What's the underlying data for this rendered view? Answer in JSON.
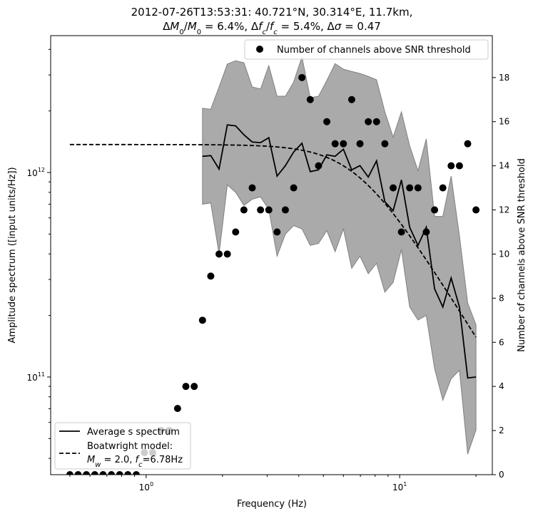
{
  "chart_data": {
    "type": "line",
    "title_line1": "2012-07-26T13:53:31: 40.721°N, 30.314°E, 11.7km,",
    "title_line2": [
      {
        "t": "Δ"
      },
      {
        "t": "M",
        "i": true
      },
      {
        "t": "0",
        "sub": true
      },
      {
        "t": "/"
      },
      {
        "t": "M",
        "i": true
      },
      {
        "t": "0",
        "sub": true
      },
      {
        "t": " = 6.4%, Δ"
      },
      {
        "t": "f",
        "i": true
      },
      {
        "t": "c",
        "sub": true,
        "i": true
      },
      {
        "t": "/"
      },
      {
        "t": "f",
        "i": true
      },
      {
        "t": "c",
        "sub": true,
        "i": true
      },
      {
        "t": " = 5.4%, Δ"
      },
      {
        "t": "σ",
        "i": true
      },
      {
        "t": " = 0.47"
      }
    ],
    "xlabel": "Frequency (Hz)",
    "ylabel_left": "Amplitude spectrum ([input units/Hz])",
    "ylabel_right": "Number of channels above SNR threshold",
    "xscale": "log",
    "yscale_left": "log",
    "xlim": [
      0.42,
      23.2
    ],
    "ylim_left": [
      33300000000.0,
      4670000000000.0
    ],
    "ylim_right": [
      0,
      19.9
    ],
    "x_ticks": [
      {
        "v": 1,
        "base": "10",
        "exp": "0"
      },
      {
        "v": 10,
        "base": "10",
        "exp": "1"
      }
    ],
    "y_left_ticks": [
      {
        "v": 100000000000.0,
        "base": "10",
        "exp": "11"
      },
      {
        "v": 1000000000000.0,
        "base": "10",
        "exp": "12"
      }
    ],
    "y_right_ticks": [
      "0",
      "2",
      "4",
      "6",
      "8",
      "10",
      "12",
      "14",
      "16",
      "18"
    ],
    "frequency": [
      0.5,
      0.539,
      0.581,
      0.627,
      0.676,
      0.729,
      0.786,
      0.847,
      0.914,
      0.984,
      1.061,
      1.144,
      1.234,
      1.33,
      1.434,
      1.547,
      1.668,
      1.798,
      1.939,
      2.09,
      2.254,
      2.43,
      2.62,
      2.825,
      3.046,
      3.284,
      3.541,
      3.818,
      4.116,
      4.438,
      4.785,
      5.16,
      5.563,
      5.998,
      6.467,
      6.973,
      7.518,
      8.106,
      8.74,
      9.424,
      10.16,
      10.95,
      11.81,
      12.73,
      13.73,
      14.8,
      15.96,
      17.21,
      18.55,
      20.0
    ],
    "series": [
      {
        "name": "Average s spectrum",
        "kind": "line",
        "color": "#000000",
        "values": [
          null,
          null,
          null,
          null,
          null,
          null,
          null,
          null,
          null,
          null,
          null,
          null,
          null,
          null,
          null,
          null,
          1200000000000.0,
          1210000000000.0,
          1040000000000.0,
          1710000000000.0,
          1690000000000.0,
          1530000000000.0,
          1410000000000.0,
          1400000000000.0,
          1480000000000.0,
          960000000000.0,
          1080000000000.0,
          1260000000000.0,
          1390000000000.0,
          1010000000000.0,
          1030000000000.0,
          1220000000000.0,
          1200000000000.0,
          1300000000000.0,
          1030000000000.0,
          1080000000000.0,
          950000000000.0,
          1140000000000.0,
          720000000000.0,
          650000000000.0,
          920000000000.0,
          540000000000.0,
          440000000000.0,
          540000000000.0,
          270000000000.0,
          220000000000.0,
          305000000000.0,
          220000000000.0,
          99000000000.0,
          100000000000.0
        ]
      },
      {
        "kind": "band",
        "color": "#aaaaaa",
        "upper": [
          null,
          null,
          null,
          null,
          null,
          null,
          null,
          null,
          null,
          null,
          null,
          null,
          null,
          null,
          null,
          null,
          2060000000000.0,
          2040000000000.0,
          2620000000000.0,
          3390000000000.0,
          3520000000000.0,
          3440000000000.0,
          2620000000000.0,
          2560000000000.0,
          3330000000000.0,
          2360000000000.0,
          2360000000000.0,
          2770000000000.0,
          3670000000000.0,
          2320000000000.0,
          2360000000000.0,
          2820000000000.0,
          3410000000000.0,
          3200000000000.0,
          3120000000000.0,
          3050000000000.0,
          2950000000000.0,
          2840000000000.0,
          1980000000000.0,
          1490000000000.0,
          1980000000000.0,
          1350000000000.0,
          1020000000000.0,
          1460000000000.0,
          610000000000.0,
          610000000000.0,
          960000000000.0,
          490000000000.0,
          230000000000.0,
          180000000000.0
        ],
        "lower": [
          null,
          null,
          null,
          null,
          null,
          null,
          null,
          null,
          null,
          null,
          null,
          null,
          null,
          null,
          null,
          null,
          700000000000.0,
          710000000000.0,
          400000000000.0,
          870000000000.0,
          800000000000.0,
          690000000000.0,
          740000000000.0,
          760000000000.0,
          660000000000.0,
          390000000000.0,
          500000000000.0,
          550000000000.0,
          530000000000.0,
          440000000000.0,
          450000000000.0,
          520000000000.0,
          410000000000.0,
          530000000000.0,
          340000000000.0,
          390000000000.0,
          320000000000.0,
          360000000000.0,
          260000000000.0,
          290000000000.0,
          420000000000.0,
          220000000000.0,
          190000000000.0,
          200000000000.0,
          110000000000.0,
          77000000000.0,
          98000000000.0,
          108000000000.0,
          42000000000.0,
          55000000000.0
        ]
      },
      {
        "name": "Boatwright model:",
        "name_line2": [
          {
            "t": "M",
            "i": true
          },
          {
            "t": "w",
            "sub": true,
            "i": true
          },
          {
            "t": " = 2.0, "
          },
          {
            "t": "f",
            "i": true
          },
          {
            "t": "c",
            "sub": true,
            "i": true
          },
          {
            "t": "=6.78Hz"
          }
        ],
        "kind": "dashed-line",
        "color": "#000000",
        "plateau": 1370000000000.0,
        "Mw": 2.0,
        "fc": 6.78
      },
      {
        "name": "Number of channels above SNR threshold",
        "kind": "scatter",
        "axis": "right",
        "color": "#000000",
        "values": [
          0,
          0,
          0,
          0,
          0,
          0,
          0,
          0,
          0,
          1,
          1,
          2,
          2,
          3,
          4,
          4,
          7,
          9,
          10,
          10,
          11,
          12,
          13,
          12,
          12,
          11,
          12,
          13,
          18,
          17,
          14,
          16,
          15,
          15,
          17,
          15,
          16,
          16,
          15,
          13,
          11,
          13,
          13,
          11,
          12,
          13,
          14,
          14,
          15,
          12
        ]
      }
    ],
    "legend_top_right": "Number of channels above SNR threshold",
    "legend_bottom_left": [
      "Average s spectrum",
      "Boatwright model:"
    ],
    "grid": false
  }
}
